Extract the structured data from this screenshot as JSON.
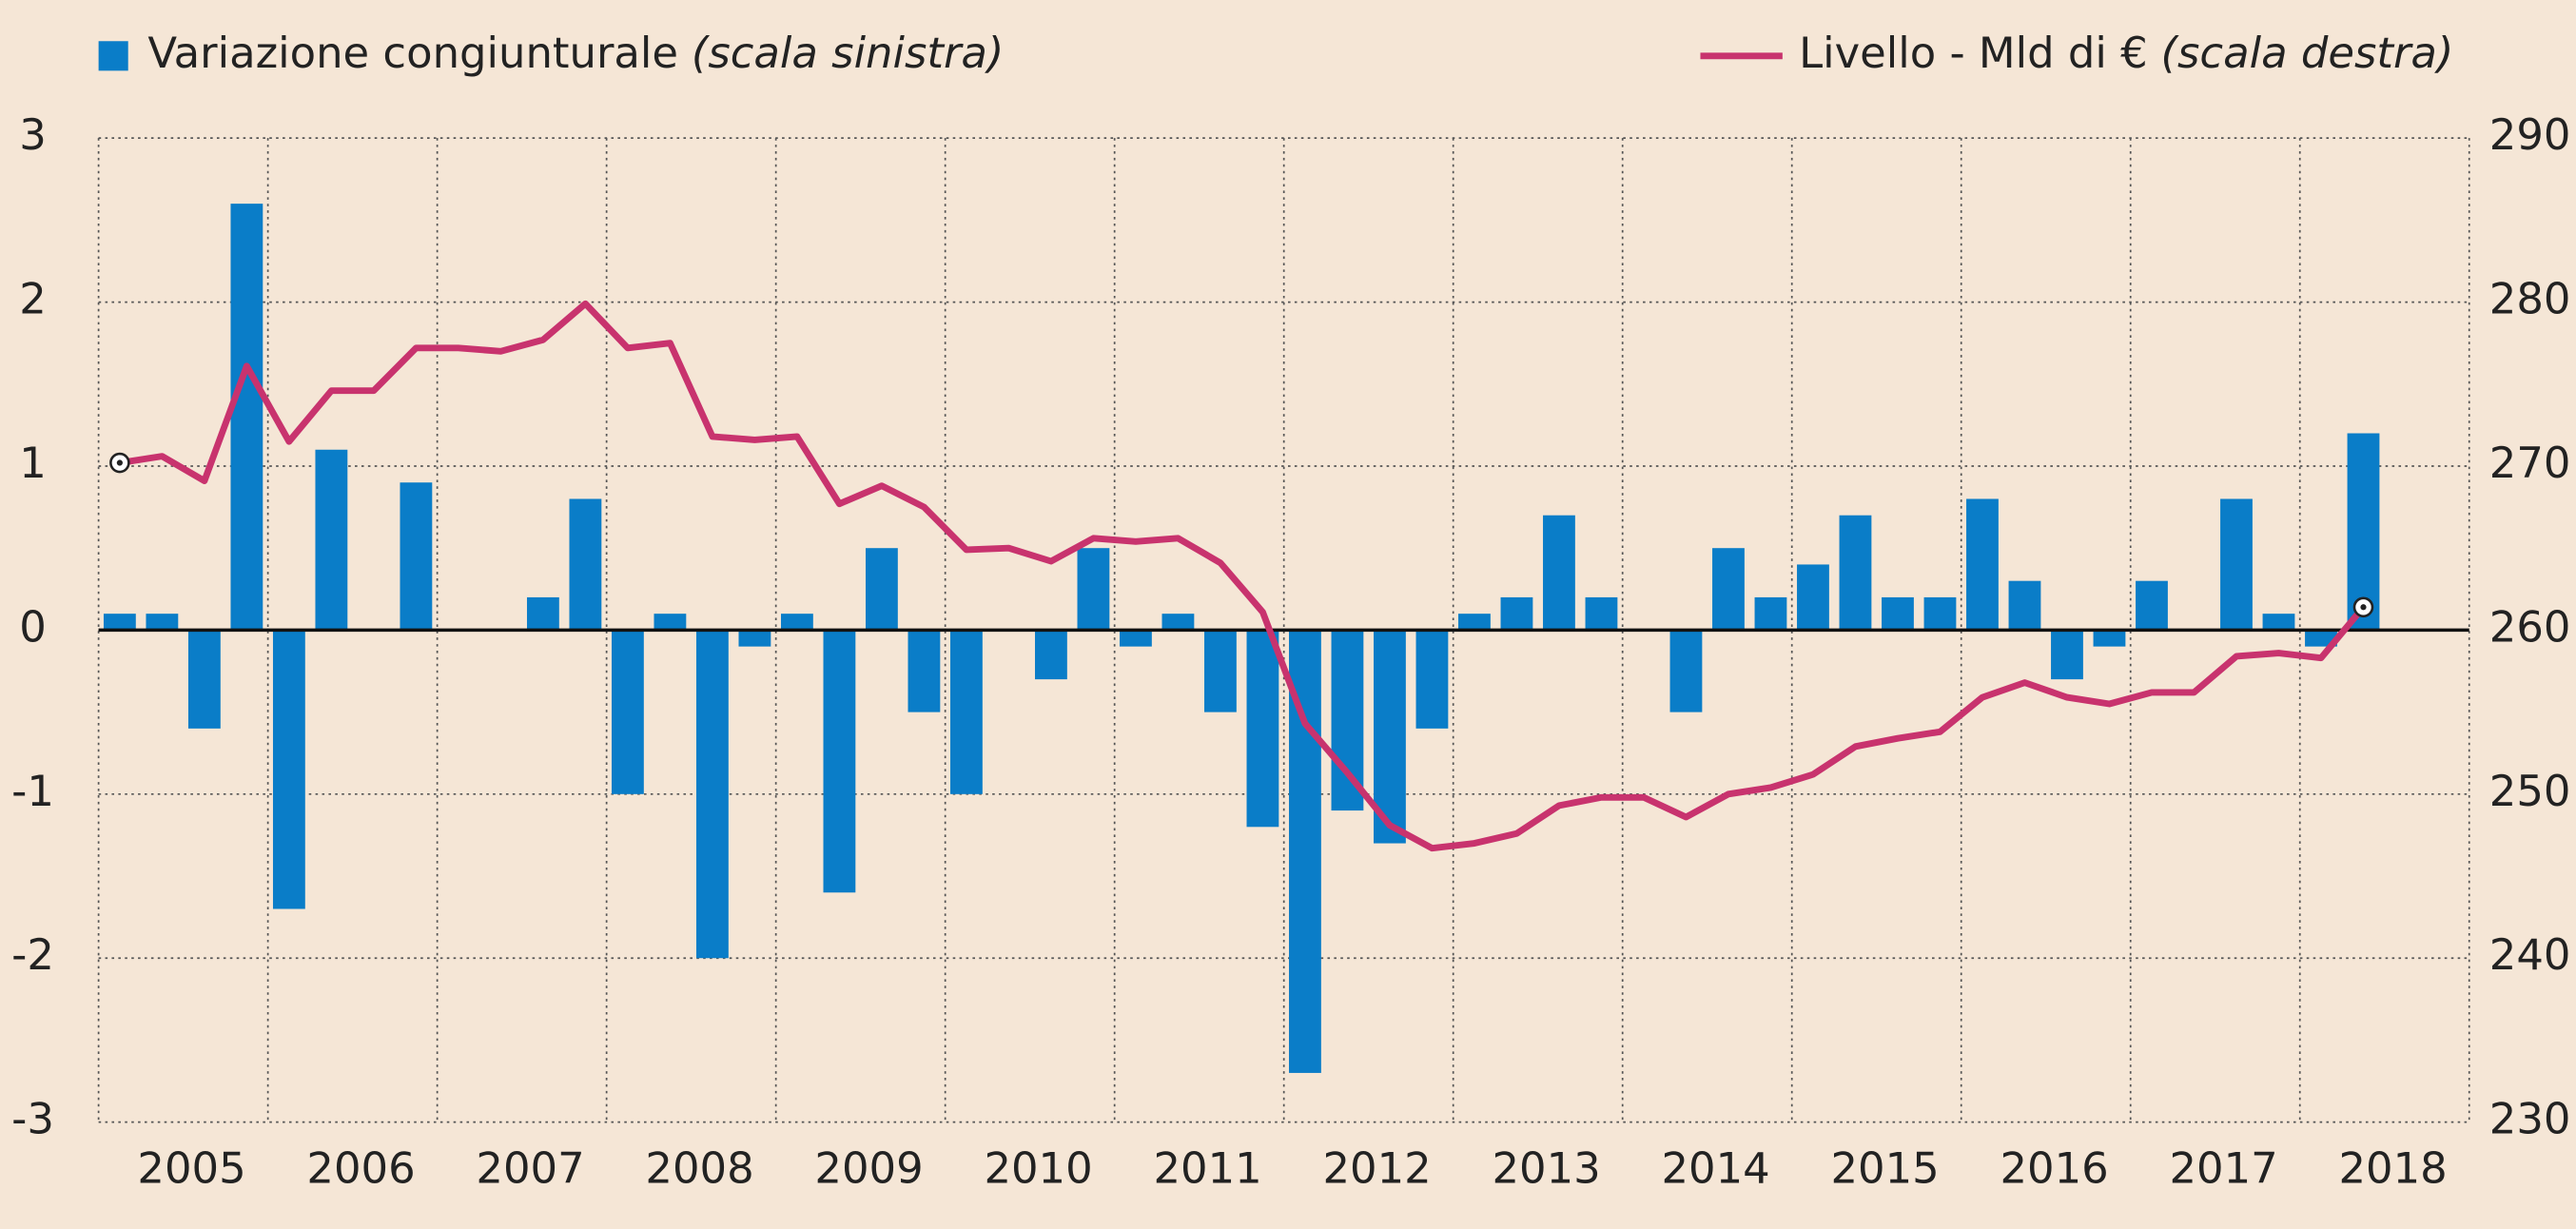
{
  "chart_data": {
    "type": "bar_line",
    "years": [
      "2005",
      "2006",
      "2007",
      "2008",
      "2009",
      "2010",
      "2011",
      "2012",
      "2013",
      "2014",
      "2015",
      "2016",
      "2017",
      "2018"
    ],
    "series": [
      {
        "name": "Variazione congiunturale",
        "scale_label": "(scala sinistra)",
        "type": "bar",
        "color": "#0a7dc8",
        "axis": "y",
        "values": [
          0.1,
          0.1,
          -0.6,
          2.6,
          -1.7,
          1.1,
          0,
          0.9,
          0,
          0,
          0.2,
          0.8,
          -1.0,
          0.1,
          -2.0,
          -0.1,
          0.1,
          -1.6,
          0.5,
          -0.5,
          -1.0,
          0,
          -0.3,
          0.5,
          -0.1,
          0.1,
          -0.5,
          -1.2,
          -2.7,
          -1.1,
          -1.3,
          -0.6,
          0.1,
          0.2,
          0.7,
          0.2,
          0,
          -0.5,
          0.5,
          0.2,
          0.4,
          0.7,
          0.2,
          0.2,
          0.8,
          0.3,
          -0.3,
          -0.1,
          0.3,
          0,
          0.8,
          0.1,
          -0.1,
          1.2
        ]
      },
      {
        "name": "Livello - Mld di €",
        "scale_label": "(scala destra)",
        "type": "line",
        "color": "#c8336e",
        "axis": "y2",
        "values": [
          270.2,
          270.6,
          269.1,
          276.1,
          271.5,
          274.6,
          274.6,
          277.2,
          277.2,
          277.0,
          277.7,
          279.9,
          277.2,
          277.5,
          271.8,
          271.6,
          271.8,
          267.7,
          268.8,
          267.5,
          264.9,
          265.0,
          264.2,
          265.6,
          265.4,
          265.6,
          264.1,
          261.1,
          254.3,
          251.3,
          248.1,
          246.7,
          247.0,
          247.6,
          249.3,
          249.8,
          249.8,
          248.6,
          250.0,
          250.4,
          251.2,
          252.9,
          253.4,
          253.8,
          255.9,
          256.8,
          255.9,
          255.5,
          256.2,
          256.2,
          258.4,
          258.6,
          258.3,
          261.4
        ]
      }
    ],
    "ylim": [
      -3,
      3
    ],
    "yticks": [
      -3,
      -2,
      -1,
      0,
      1,
      2,
      3
    ],
    "y2lim": [
      230,
      290
    ],
    "y2ticks": [
      230,
      240,
      250,
      260,
      270,
      280,
      290
    ],
    "grid": true
  }
}
